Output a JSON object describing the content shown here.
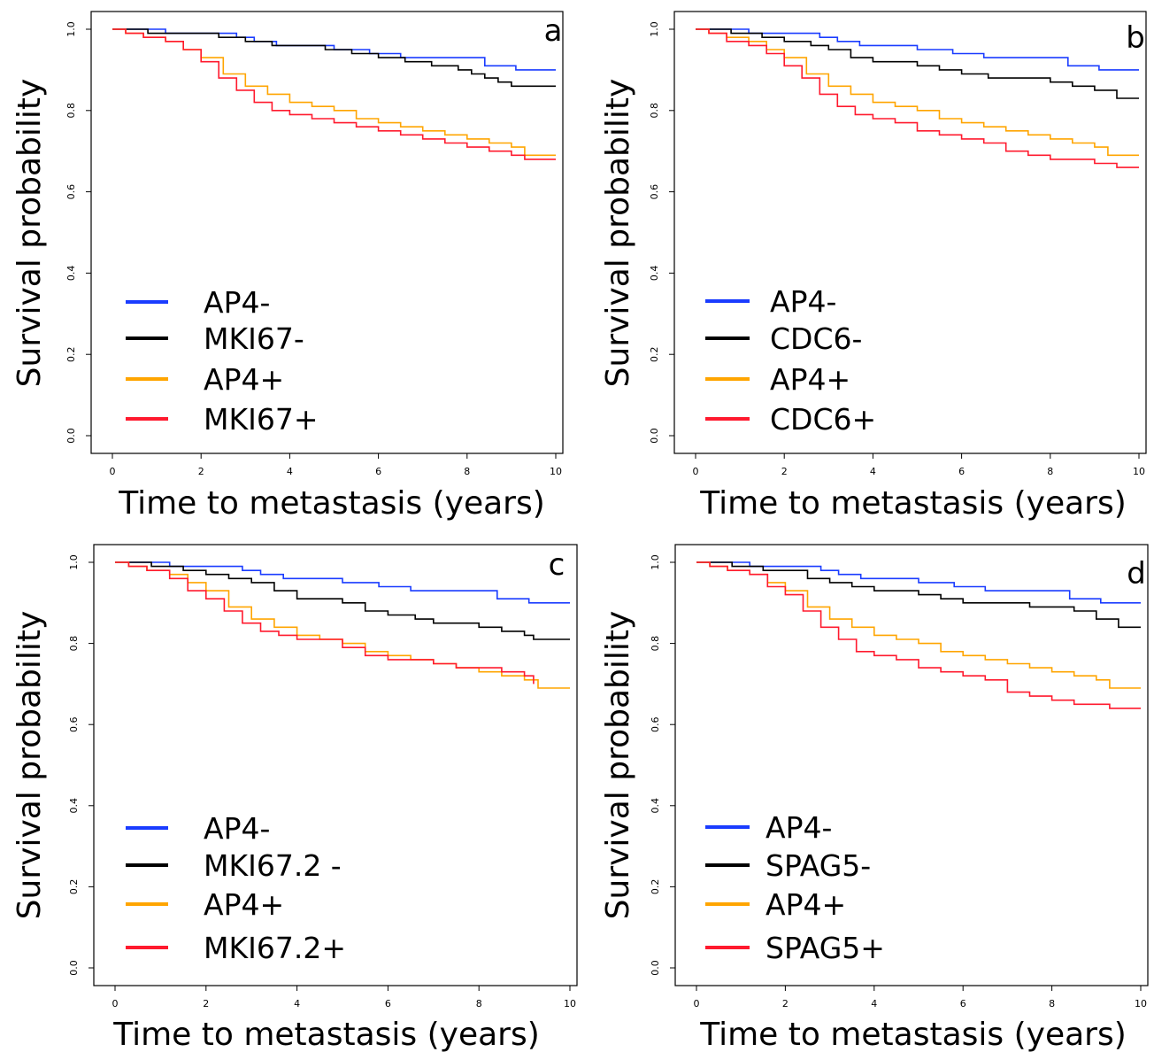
{
  "chart_data": [
    {
      "type": "line",
      "panel_label": "a",
      "xlabel": "Time to metastasis (years)",
      "ylabel": "Survival probability",
      "xlim": [
        0,
        10
      ],
      "ylim": [
        0,
        1
      ],
      "xticks": [
        "0",
        "2",
        "4",
        "6",
        "8",
        "10"
      ],
      "yticks": [
        "0.0",
        "0.2",
        "0.4",
        "0.6",
        "0.8",
        "1.0"
      ],
      "legend_position": "bottom-left",
      "series": [
        {
          "name": "AP4-",
          "color": "#1a3cff",
          "x": [
            0,
            0.5,
            1.2,
            2.0,
            2.8,
            3.2,
            3.7,
            4.4,
            5.0,
            5.8,
            6.5,
            8.2,
            8.4,
            9.1,
            10
          ],
          "y": [
            1.0,
            1.0,
            0.99,
            0.99,
            0.98,
            0.97,
            0.96,
            0.96,
            0.95,
            0.94,
            0.93,
            0.93,
            0.91,
            0.9,
            0.9
          ]
        },
        {
          "name": "MKI67-",
          "color": "#000000",
          "x": [
            0,
            0.8,
            1.6,
            2.4,
            3.0,
            3.6,
            4.2,
            4.8,
            5.4,
            6.0,
            6.6,
            7.2,
            7.8,
            8.1,
            8.4,
            8.7,
            9.0,
            10
          ],
          "y": [
            1.0,
            0.99,
            0.99,
            0.98,
            0.97,
            0.96,
            0.96,
            0.95,
            0.94,
            0.93,
            0.92,
            0.91,
            0.9,
            0.89,
            0.88,
            0.87,
            0.86,
            0.86
          ]
        },
        {
          "name": "AP4+",
          "color": "#ffa500",
          "x": [
            0,
            0.3,
            0.7,
            1.2,
            1.6,
            2.0,
            2.5,
            3.0,
            3.5,
            4.0,
            4.5,
            5.0,
            5.5,
            6.0,
            6.5,
            7.0,
            7.5,
            8.0,
            8.5,
            9.0,
            9.3,
            10
          ],
          "y": [
            1.0,
            0.99,
            0.98,
            0.97,
            0.95,
            0.93,
            0.89,
            0.86,
            0.84,
            0.82,
            0.81,
            0.8,
            0.78,
            0.77,
            0.76,
            0.75,
            0.74,
            0.73,
            0.72,
            0.71,
            0.69,
            0.69
          ]
        },
        {
          "name": "MKI67+",
          "color": "#ff1a2e",
          "x": [
            0,
            0.3,
            0.7,
            1.2,
            1.6,
            2.0,
            2.4,
            2.8,
            3.2,
            3.6,
            4.0,
            4.5,
            5.0,
            5.5,
            6.0,
            6.5,
            7.0,
            7.5,
            8.0,
            8.5,
            9.0,
            9.3,
            10
          ],
          "y": [
            1.0,
            0.99,
            0.98,
            0.97,
            0.95,
            0.92,
            0.88,
            0.85,
            0.82,
            0.8,
            0.79,
            0.78,
            0.77,
            0.76,
            0.75,
            0.74,
            0.73,
            0.72,
            0.71,
            0.7,
            0.69,
            0.68,
            0.68
          ]
        }
      ]
    },
    {
      "type": "line",
      "panel_label": "b",
      "xlabel": "Time to metastasis (years)",
      "ylabel": "Survival probability",
      "xlim": [
        0,
        10
      ],
      "ylim": [
        0,
        1
      ],
      "xticks": [
        "0",
        "2",
        "4",
        "6",
        "8",
        "10"
      ],
      "yticks": [
        "0.0",
        "0.2",
        "0.4",
        "0.6",
        "0.8",
        "1.0"
      ],
      "legend_position": "bottom-left",
      "series": [
        {
          "name": "AP4-",
          "color": "#1a3cff",
          "x": [
            0,
            0.5,
            1.2,
            2.0,
            2.8,
            3.2,
            3.7,
            4.4,
            5.0,
            5.8,
            6.5,
            8.2,
            8.4,
            9.1,
            10
          ],
          "y": [
            1.0,
            1.0,
            0.99,
            0.99,
            0.98,
            0.97,
            0.96,
            0.96,
            0.95,
            0.94,
            0.93,
            0.93,
            0.91,
            0.9,
            0.9
          ]
        },
        {
          "name": "CDC6-",
          "color": "#000000",
          "x": [
            0,
            0.8,
            1.5,
            2.0,
            2.6,
            3.0,
            3.5,
            4.0,
            5.0,
            5.5,
            6.0,
            6.6,
            7.2,
            8.0,
            8.5,
            9.0,
            9.5,
            10
          ],
          "y": [
            1.0,
            0.99,
            0.98,
            0.97,
            0.96,
            0.95,
            0.93,
            0.92,
            0.91,
            0.9,
            0.89,
            0.88,
            0.88,
            0.87,
            0.86,
            0.85,
            0.83,
            0.83
          ]
        },
        {
          "name": "AP4+",
          "color": "#ffa500",
          "x": [
            0,
            0.3,
            0.7,
            1.2,
            1.6,
            2.0,
            2.5,
            3.0,
            3.5,
            4.0,
            4.5,
            5.0,
            5.5,
            6.0,
            6.5,
            7.0,
            7.5,
            8.0,
            8.5,
            9.0,
            9.3,
            10
          ],
          "y": [
            1.0,
            0.99,
            0.98,
            0.97,
            0.95,
            0.93,
            0.89,
            0.86,
            0.84,
            0.82,
            0.81,
            0.8,
            0.78,
            0.77,
            0.76,
            0.75,
            0.74,
            0.73,
            0.72,
            0.71,
            0.69,
            0.69
          ]
        },
        {
          "name": "CDC6+",
          "color": "#ff1a2e",
          "x": [
            0,
            0.3,
            0.7,
            1.2,
            1.6,
            2.0,
            2.4,
            2.8,
            3.2,
            3.6,
            4.0,
            4.5,
            5.0,
            5.5,
            6.0,
            6.5,
            7.0,
            7.5,
            8.0,
            8.5,
            9.0,
            9.5,
            10
          ],
          "y": [
            1.0,
            0.99,
            0.97,
            0.96,
            0.94,
            0.91,
            0.88,
            0.84,
            0.81,
            0.79,
            0.78,
            0.77,
            0.75,
            0.74,
            0.73,
            0.72,
            0.7,
            0.69,
            0.68,
            0.68,
            0.67,
            0.66,
            0.66
          ]
        }
      ]
    },
    {
      "type": "line",
      "panel_label": "c",
      "xlabel": "Time to metastasis (years)",
      "ylabel": "Survival probability",
      "xlim": [
        0,
        10
      ],
      "ylim": [
        0,
        1
      ],
      "xticks": [
        "0",
        "2",
        "4",
        "6",
        "8",
        "10"
      ],
      "yticks": [
        "0.0",
        "0.2",
        "0.4",
        "0.6",
        "0.8",
        "1.0"
      ],
      "legend_position": "bottom-left",
      "series": [
        {
          "name": "AP4-",
          "color": "#1a3cff",
          "x": [
            0,
            0.5,
            1.2,
            2.0,
            2.8,
            3.2,
            3.7,
            4.4,
            5.0,
            5.8,
            6.5,
            8.2,
            8.4,
            9.1,
            10
          ],
          "y": [
            1.0,
            1.0,
            0.99,
            0.99,
            0.98,
            0.97,
            0.96,
            0.96,
            0.95,
            0.94,
            0.93,
            0.93,
            0.91,
            0.9,
            0.9
          ]
        },
        {
          "name": "MKI67.2 -",
          "color": "#000000",
          "x": [
            0,
            0.8,
            1.5,
            2.0,
            2.5,
            3.0,
            3.5,
            4.0,
            5.0,
            5.5,
            6.0,
            6.6,
            7.0,
            7.5,
            8.0,
            8.5,
            9.0,
            9.2,
            10
          ],
          "y": [
            1.0,
            0.99,
            0.98,
            0.97,
            0.96,
            0.95,
            0.93,
            0.91,
            0.9,
            0.88,
            0.87,
            0.86,
            0.85,
            0.85,
            0.84,
            0.83,
            0.82,
            0.81,
            0.81
          ]
        },
        {
          "name": "AP4+",
          "color": "#ffa500",
          "x": [
            0,
            0.3,
            0.7,
            1.2,
            1.6,
            2.0,
            2.5,
            3.0,
            3.5,
            4.0,
            4.5,
            5.0,
            5.5,
            6.0,
            6.5,
            7.0,
            7.5,
            8.0,
            8.5,
            9.0,
            9.3,
            10
          ],
          "y": [
            1.0,
            0.99,
            0.98,
            0.97,
            0.95,
            0.93,
            0.89,
            0.86,
            0.84,
            0.82,
            0.81,
            0.8,
            0.78,
            0.77,
            0.76,
            0.75,
            0.74,
            0.73,
            0.72,
            0.71,
            0.69,
            0.69
          ]
        },
        {
          "name": "MKI67.2+",
          "color": "#ff1a2e",
          "x": [
            0,
            0.3,
            0.7,
            1.2,
            1.6,
            2.0,
            2.4,
            2.8,
            3.2,
            3.6,
            4.0,
            5.0,
            5.5,
            6.0,
            7.0,
            7.5,
            8.0,
            8.5,
            9.0,
            9.2
          ],
          "y": [
            1.0,
            0.99,
            0.98,
            0.96,
            0.93,
            0.91,
            0.88,
            0.85,
            0.83,
            0.82,
            0.81,
            0.79,
            0.77,
            0.76,
            0.75,
            0.74,
            0.74,
            0.73,
            0.72,
            0.7
          ]
        }
      ]
    },
    {
      "type": "line",
      "panel_label": "d",
      "xlabel": "Time to metastasis (years)",
      "ylabel": "Survival probability",
      "xlim": [
        0,
        10
      ],
      "ylim": [
        0,
        1
      ],
      "xticks": [
        "0",
        "2",
        "4",
        "6",
        "8",
        "10"
      ],
      "yticks": [
        "0.0",
        "0.2",
        "0.4",
        "0.6",
        "0.8",
        "1.0"
      ],
      "legend_position": "bottom-left",
      "series": [
        {
          "name": "AP4-",
          "color": "#1a3cff",
          "x": [
            0,
            0.5,
            1.2,
            2.0,
            2.8,
            3.2,
            3.7,
            4.4,
            5.0,
            5.8,
            6.5,
            8.2,
            8.4,
            9.1,
            10
          ],
          "y": [
            1.0,
            1.0,
            0.99,
            0.99,
            0.98,
            0.97,
            0.96,
            0.96,
            0.95,
            0.94,
            0.93,
            0.93,
            0.91,
            0.9,
            0.9
          ]
        },
        {
          "name": "SPAG5-",
          "color": "#000000",
          "x": [
            0,
            0.8,
            1.5,
            2.0,
            2.5,
            3.0,
            3.5,
            4.0,
            5.0,
            5.5,
            6.0,
            7.0,
            7.5,
            8.0,
            8.5,
            9.0,
            9.5,
            10
          ],
          "y": [
            1.0,
            0.99,
            0.98,
            0.98,
            0.96,
            0.95,
            0.94,
            0.93,
            0.92,
            0.91,
            0.9,
            0.9,
            0.89,
            0.89,
            0.88,
            0.86,
            0.84,
            0.84
          ]
        },
        {
          "name": "AP4+",
          "color": "#ffa500",
          "x": [
            0,
            0.3,
            0.7,
            1.2,
            1.6,
            2.0,
            2.5,
            3.0,
            3.5,
            4.0,
            4.5,
            5.0,
            5.5,
            6.0,
            6.5,
            7.0,
            7.5,
            8.0,
            8.5,
            9.0,
            9.3,
            10
          ],
          "y": [
            1.0,
            0.99,
            0.98,
            0.97,
            0.95,
            0.93,
            0.89,
            0.86,
            0.84,
            0.82,
            0.81,
            0.8,
            0.78,
            0.77,
            0.76,
            0.75,
            0.74,
            0.73,
            0.72,
            0.71,
            0.69,
            0.69
          ]
        },
        {
          "name": "SPAG5+",
          "color": "#ff1a2e",
          "x": [
            0,
            0.3,
            0.7,
            1.2,
            1.6,
            2.0,
            2.4,
            2.8,
            3.2,
            3.6,
            4.0,
            4.5,
            5.0,
            5.5,
            6.0,
            6.5,
            7.0,
            7.5,
            8.0,
            8.5,
            9.0,
            9.3,
            10
          ],
          "y": [
            1.0,
            0.99,
            0.98,
            0.97,
            0.94,
            0.92,
            0.88,
            0.84,
            0.81,
            0.78,
            0.77,
            0.76,
            0.74,
            0.73,
            0.72,
            0.71,
            0.68,
            0.67,
            0.66,
            0.65,
            0.65,
            0.64,
            0.64
          ]
        }
      ]
    }
  ]
}
